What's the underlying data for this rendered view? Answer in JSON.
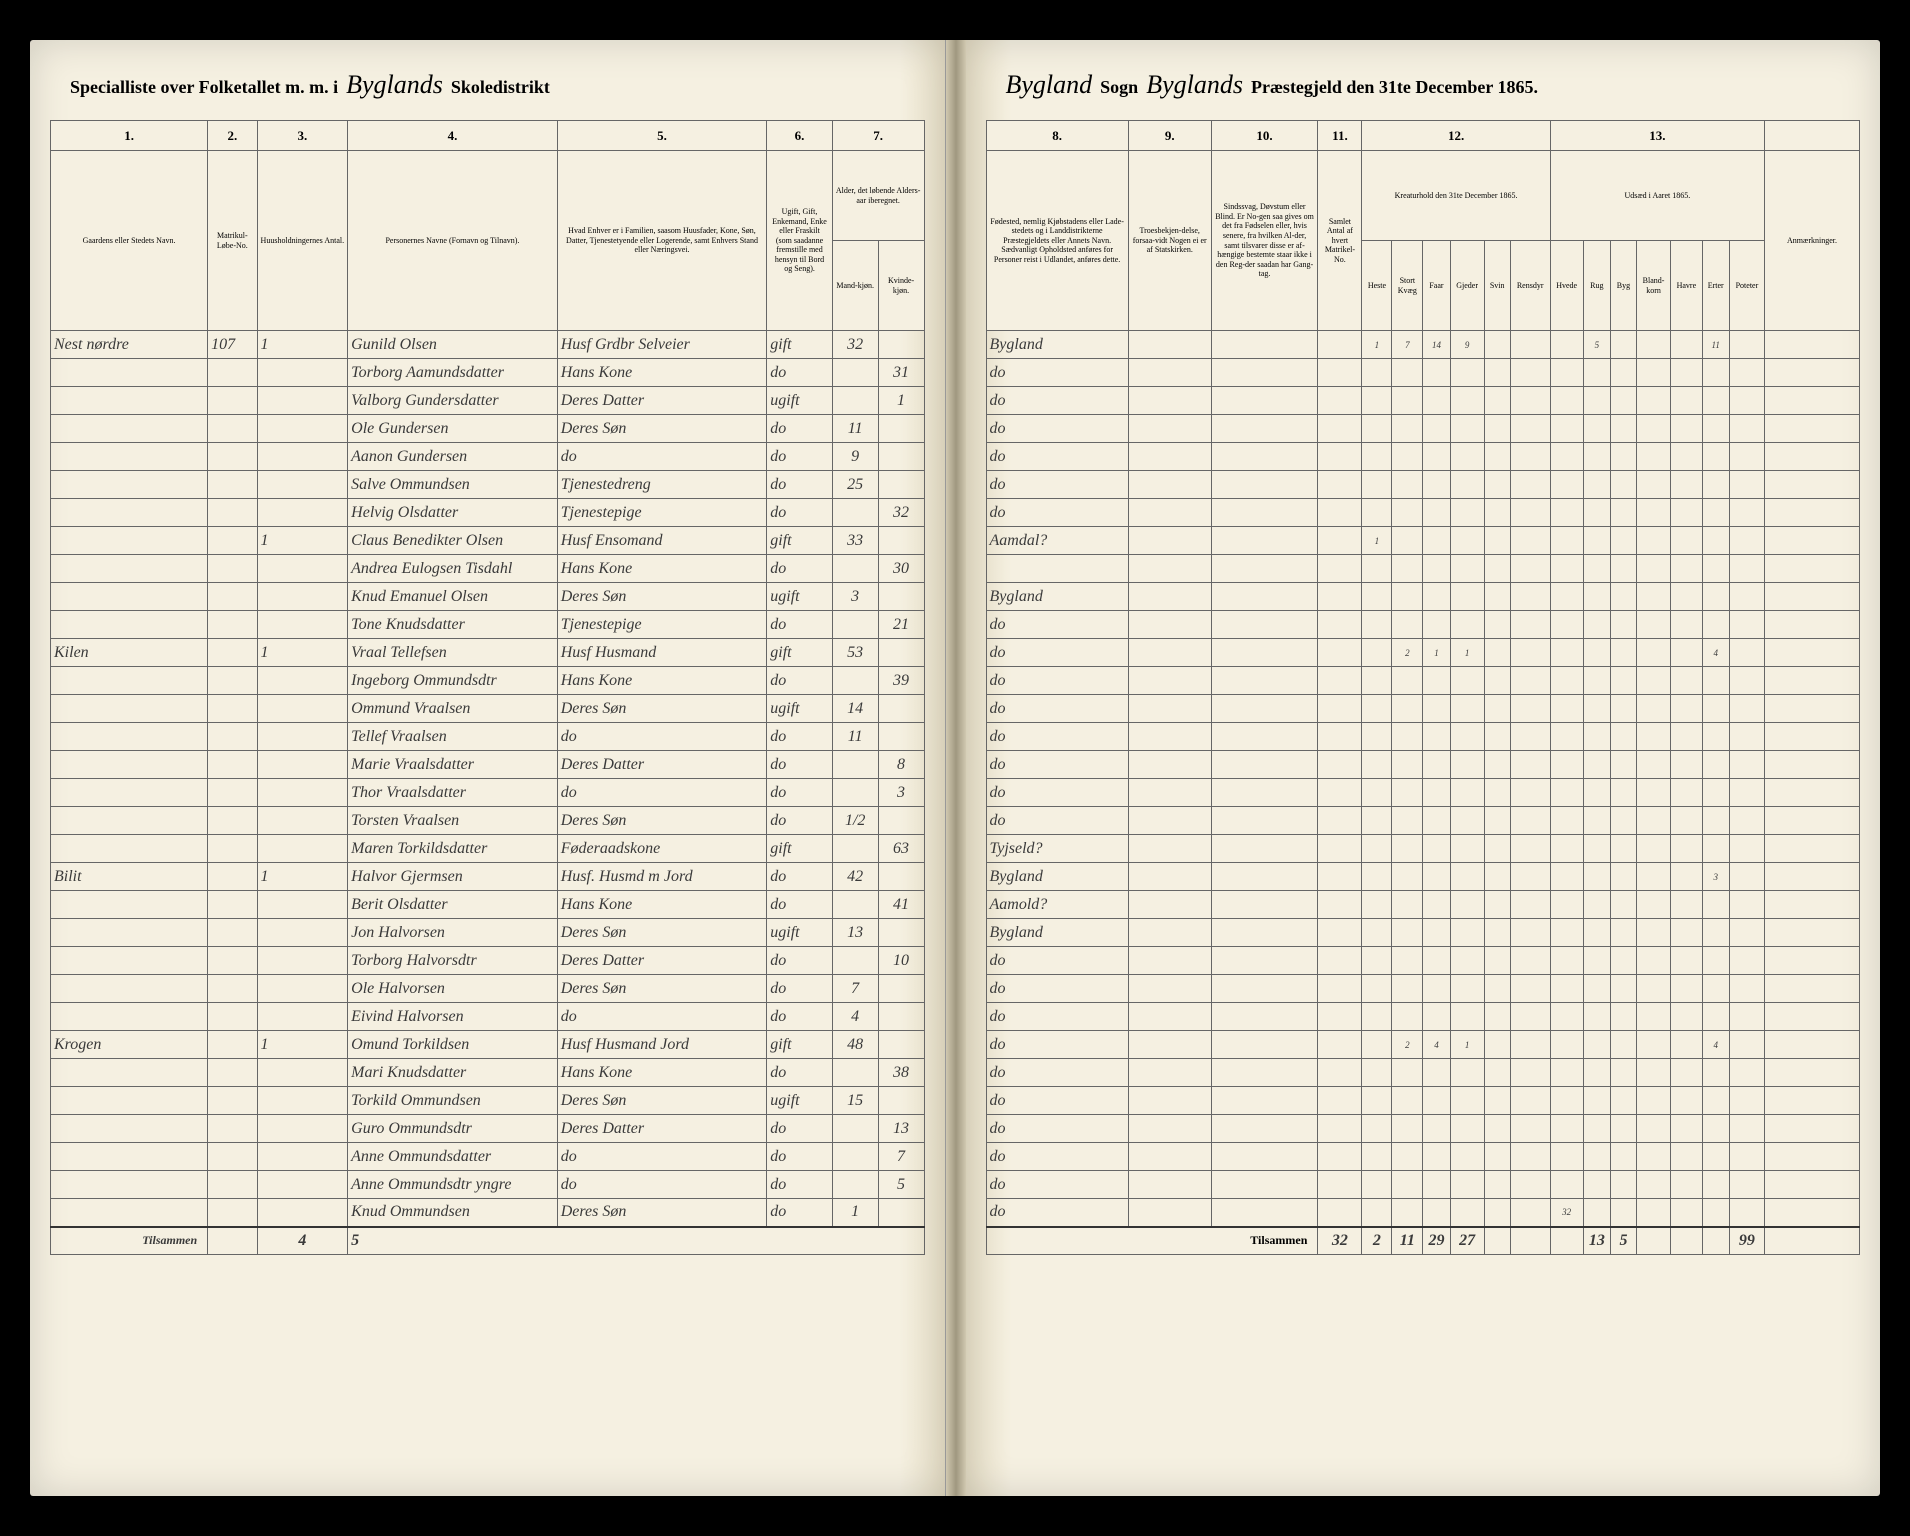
{
  "header": {
    "left_prefix": "Specialliste over Folketallet m. m. i",
    "parish_left": "Byglands",
    "left_suffix": "Skoledistrikt",
    "parish_right1": "Bygland",
    "middle1": "Sogn",
    "parish_right2": "Byglands",
    "right_suffix": "Præstegjeld den 31te December 1865."
  },
  "colnums_left": [
    "1.",
    "2.",
    "3.",
    "4.",
    "5.",
    "6.",
    "7."
  ],
  "colnums_right": [
    "8.",
    "9.",
    "10.",
    "11.",
    "12.",
    "13."
  ],
  "left_headers": {
    "c1": "Gaardens eller Stedets Navn.",
    "c2": "Matrikul-Løbe-No.",
    "c3": "Huusholdningernes Antal.",
    "c4": "Personernes Navne (Fornavn og Tilnavn).",
    "c5": "Hvad Enhver er i Familien, saasom Huusfader, Kone, Søn, Datter, Tjenestetyende eller Logerende, samt Enhvers Stand eller Næringsvei.",
    "c6": "Ugift, Gift, Enkemand, Enke eller Fraskilt (som saadanne fremstille med hensyn til Bord og Seng).",
    "c7a": "Alder, det løbende Alders-aar iberegnet.",
    "c7b": "Mand-kjøn.",
    "c7c": "Kvinde-kjøn."
  },
  "right_headers": {
    "c8": "Fødested, nemlig Kjøbstadens eller Lade-stedets og i Landdistrikterne Præstegjeldets eller Annets Navn. Sædvanligt Opholdsted anføres for Personer reist i Udlandet, anføres dette.",
    "c9": "Troesbekjen-delse, forsaa-vidt Nogen ei er af Statskirken.",
    "c10": "Sindssvag, Døvstum eller Blind. Er No-gen saa gives om det fra Fødselen eller, hvis senere, fra hvilken Al-der, samt tilsvarer disse er af-hængige bestemte staar ikke i den Reg-der saadan har Gang-tag.",
    "c11": "Samlet Antal af hvert Matrikel-No.",
    "c12": "Kreaturhold den 31te December 1865.",
    "c13": "Udsæd i Aaret 1865.",
    "c12_sub": [
      "Heste",
      "Stort Kvæg",
      "Faar",
      "Gjeder",
      "Svin",
      "Rensdyr"
    ],
    "c13_sub": [
      "Hvede",
      "Rug",
      "Byg",
      "Bland-korn",
      "Havre",
      "Erter",
      "Poteter"
    ],
    "remarks": "Anmærkninger."
  },
  "rows": [
    {
      "place": "Nest nørdre",
      "mnr": "107",
      "hhn": "1",
      "name": "Gunild Olsen",
      "role": "Husf Grdbr Selveier",
      "civ": "gift",
      "m": "32",
      "f": "",
      "birth": "Bygland",
      "cattle": [
        "1",
        "7",
        "14",
        "9",
        "",
        "",
        "",
        "5",
        "",
        "",
        "",
        "11"
      ]
    },
    {
      "place": "",
      "mnr": "",
      "hhn": "",
      "name": "Torborg Aamundsdatter",
      "role": "Hans Kone",
      "civ": "do",
      "m": "",
      "f": "31",
      "birth": "do",
      "cattle": []
    },
    {
      "place": "",
      "mnr": "",
      "hhn": "",
      "name": "Valborg Gundersdatter",
      "role": "Deres Datter",
      "civ": "ugift",
      "m": "",
      "f": "1",
      "birth": "do",
      "cattle": []
    },
    {
      "place": "",
      "mnr": "",
      "hhn": "",
      "name": "Ole Gundersen",
      "role": "Deres Søn",
      "civ": "do",
      "m": "11",
      "f": "",
      "birth": "do",
      "cattle": []
    },
    {
      "place": "",
      "mnr": "",
      "hhn": "",
      "name": "Aanon Gundersen",
      "role": "do",
      "civ": "do",
      "m": "9",
      "f": "",
      "birth": "do",
      "cattle": []
    },
    {
      "place": "",
      "mnr": "",
      "hhn": "",
      "name": "Salve Ommundsen",
      "role": "Tjenestedreng",
      "civ": "do",
      "m": "25",
      "f": "",
      "birth": "do",
      "cattle": []
    },
    {
      "place": "",
      "mnr": "",
      "hhn": "",
      "name": "Helvig Olsdatter",
      "role": "Tjenestepige",
      "civ": "do",
      "m": "",
      "f": "32",
      "birth": "do",
      "cattle": []
    },
    {
      "place": "",
      "mnr": "",
      "hhn": "1",
      "name": "Claus Benedikter Olsen",
      "role": "Husf Ensomand",
      "civ": "gift",
      "m": "33",
      "f": "",
      "birth": "Aamdal?",
      "cattle": [
        "1",
        "",
        "",
        "",
        "",
        "",
        "",
        "",
        "",
        "",
        "",
        ""
      ]
    },
    {
      "place": "",
      "mnr": "",
      "hhn": "",
      "name": "Andrea Eulogsen Tisdahl",
      "role": "Hans Kone",
      "civ": "do",
      "m": "",
      "f": "30",
      "birth": "",
      "cattle": []
    },
    {
      "place": "",
      "mnr": "",
      "hhn": "",
      "name": "Knud Emanuel Olsen",
      "role": "Deres Søn",
      "civ": "ugift",
      "m": "3",
      "f": "",
      "birth": "Bygland",
      "cattle": []
    },
    {
      "place": "",
      "mnr": "",
      "hhn": "",
      "name": "Tone Knudsdatter",
      "role": "Tjenestepige",
      "civ": "do",
      "m": "",
      "f": "21",
      "birth": "do",
      "cattle": []
    },
    {
      "place": "Kilen",
      "mnr": "",
      "hhn": "1",
      "name": "Vraal Tellefsen",
      "role": "Husf Husmand",
      "civ": "gift",
      "m": "53",
      "f": "",
      "birth": "do",
      "cattle": [
        "",
        "2",
        "1",
        "1",
        "",
        "",
        "",
        "",
        "",
        "",
        "",
        "4"
      ]
    },
    {
      "place": "",
      "mnr": "",
      "hhn": "",
      "name": "Ingeborg Ommundsdtr",
      "role": "Hans Kone",
      "civ": "do",
      "m": "",
      "f": "39",
      "birth": "do",
      "cattle": []
    },
    {
      "place": "",
      "mnr": "",
      "hhn": "",
      "name": "Ommund Vraalsen",
      "role": "Deres Søn",
      "civ": "ugift",
      "m": "14",
      "f": "",
      "birth": "do",
      "cattle": []
    },
    {
      "place": "",
      "mnr": "",
      "hhn": "",
      "name": "Tellef Vraalsen",
      "role": "do",
      "civ": "do",
      "m": "11",
      "f": "",
      "birth": "do",
      "cattle": []
    },
    {
      "place": "",
      "mnr": "",
      "hhn": "",
      "name": "Marie Vraalsdatter",
      "role": "Deres Datter",
      "civ": "do",
      "m": "",
      "f": "8",
      "birth": "do",
      "cattle": []
    },
    {
      "place": "",
      "mnr": "",
      "hhn": "",
      "name": "Thor Vraalsdatter",
      "role": "do",
      "civ": "do",
      "m": "",
      "f": "3",
      "birth": "do",
      "cattle": []
    },
    {
      "place": "",
      "mnr": "",
      "hhn": "",
      "name": "Torsten Vraalsen",
      "role": "Deres Søn",
      "civ": "do",
      "m": "1/2",
      "f": "",
      "birth": "do",
      "cattle": []
    },
    {
      "place": "",
      "mnr": "",
      "hhn": "",
      "name": "Maren Torkildsdatter",
      "role": "Føderaadskone",
      "civ": "gift",
      "m": "",
      "f": "63",
      "birth": "Tyjseld?",
      "cattle": []
    },
    {
      "place": "Bilit",
      "mnr": "",
      "hhn": "1",
      "name": "Halvor Gjermsen",
      "role": "Husf. Husmd m Jord",
      "civ": "do",
      "m": "42",
      "f": "",
      "birth": "Bygland",
      "cattle": [
        "",
        "",
        "",
        "",
        "",
        "",
        "",
        "",
        "",
        "",
        "",
        "3"
      ]
    },
    {
      "place": "",
      "mnr": "",
      "hhn": "",
      "name": "Berit Olsdatter",
      "role": "Hans Kone",
      "civ": "do",
      "m": "",
      "f": "41",
      "birth": "Aamold?",
      "cattle": []
    },
    {
      "place": "",
      "mnr": "",
      "hhn": "",
      "name": "Jon Halvorsen",
      "role": "Deres Søn",
      "civ": "ugift",
      "m": "13",
      "f": "",
      "birth": "Bygland",
      "cattle": []
    },
    {
      "place": "",
      "mnr": "",
      "hhn": "",
      "name": "Torborg Halvorsdtr",
      "role": "Deres Datter",
      "civ": "do",
      "m": "",
      "f": "10",
      "birth": "do",
      "cattle": []
    },
    {
      "place": "",
      "mnr": "",
      "hhn": "",
      "name": "Ole Halvorsen",
      "role": "Deres Søn",
      "civ": "do",
      "m": "7",
      "f": "",
      "birth": "do",
      "cattle": []
    },
    {
      "place": "",
      "mnr": "",
      "hhn": "",
      "name": "Eivind Halvorsen",
      "role": "do",
      "civ": "do",
      "m": "4",
      "f": "",
      "birth": "do",
      "cattle": []
    },
    {
      "place": "Krogen",
      "mnr": "",
      "hhn": "1",
      "name": "Omund Torkildsen",
      "role": "Husf Husmand Jord",
      "civ": "gift",
      "m": "48",
      "f": "",
      "birth": "do",
      "cattle": [
        "",
        "2",
        "4",
        "1",
        "",
        "",
        "",
        "",
        "",
        "",
        "",
        "4"
      ]
    },
    {
      "place": "",
      "mnr": "",
      "hhn": "",
      "name": "Mari Knudsdatter",
      "role": "Hans Kone",
      "civ": "do",
      "m": "",
      "f": "38",
      "birth": "do",
      "cattle": []
    },
    {
      "place": "",
      "mnr": "",
      "hhn": "",
      "name": "Torkild Ommundsen",
      "role": "Deres Søn",
      "civ": "ugift",
      "m": "15",
      "f": "",
      "birth": "do",
      "cattle": []
    },
    {
      "place": "",
      "mnr": "",
      "hhn": "",
      "name": "Guro Ommundsdtr",
      "role": "Deres Datter",
      "civ": "do",
      "m": "",
      "f": "13",
      "birth": "do",
      "cattle": []
    },
    {
      "place": "",
      "mnr": "",
      "hhn": "",
      "name": "Anne Ommundsdatter",
      "role": "do",
      "civ": "do",
      "m": "",
      "f": "7",
      "birth": "do",
      "cattle": []
    },
    {
      "place": "",
      "mnr": "",
      "hhn": "",
      "name": "Anne Ommundsdtr yngre",
      "role": "do",
      "civ": "do",
      "m": "",
      "f": "5",
      "birth": "do",
      "cattle": []
    },
    {
      "place": "",
      "mnr": "",
      "hhn": "",
      "name": "Knud Ommundsen",
      "role": "Deres Søn",
      "civ": "do",
      "m": "1",
      "f": "",
      "birth": "do",
      "cattle": [
        "",
        "",
        "",
        "",
        "",
        "",
        "32",
        "",
        "",
        "",
        "",
        ""
      ]
    }
  ],
  "footer": {
    "left_label": "Tilsammen",
    "left_hhn": "4",
    "left_count": "5",
    "right_label": "Tilsammen",
    "sums": [
      "32",
      "2",
      "11",
      "29",
      "27",
      "",
      "",
      "",
      "13",
      "5",
      "",
      "",
      "",
      "99"
    ]
  },
  "colors": {
    "paper": "#f5f0e1",
    "ink": "#3a3a3a",
    "rule": "#666666",
    "frame": "#000000"
  }
}
